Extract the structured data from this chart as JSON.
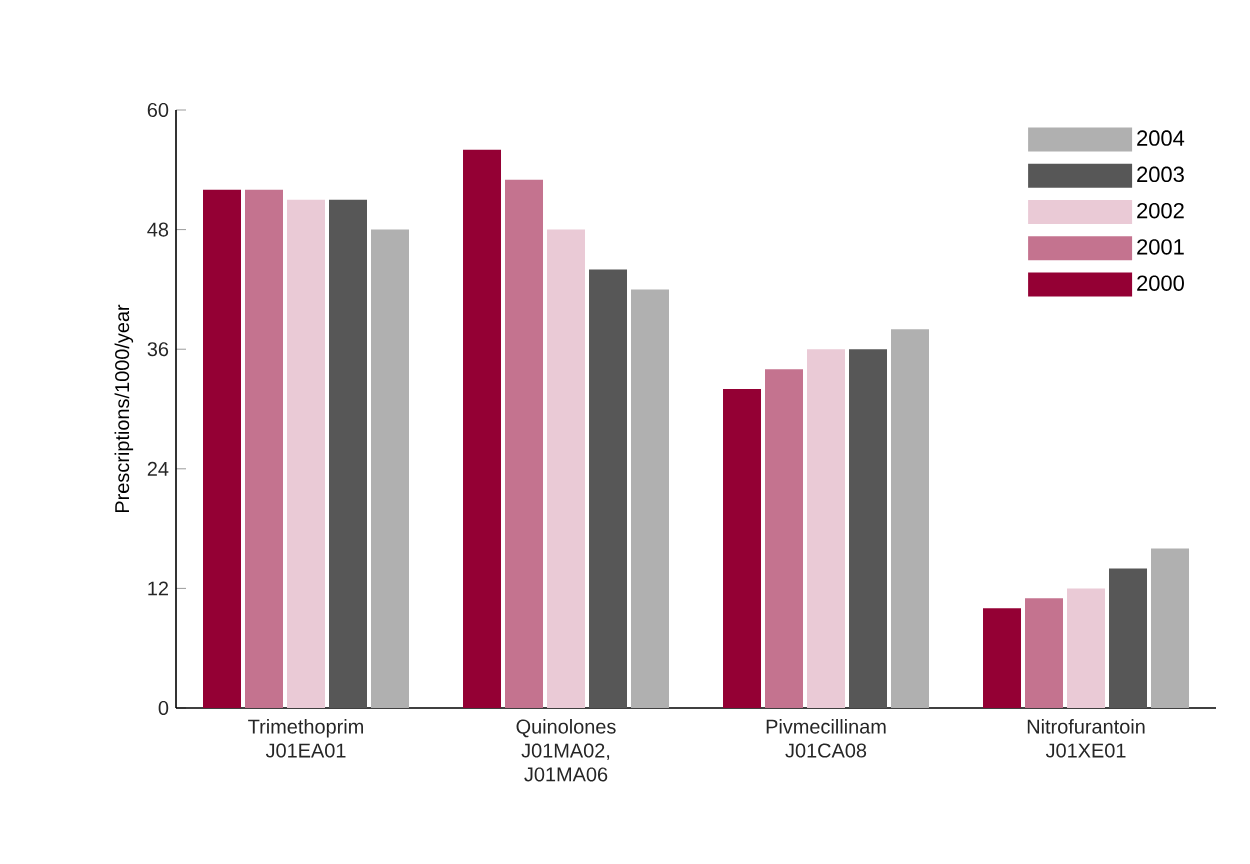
{
  "chart_data": {
    "type": "bar",
    "ylabel": "Prescriptions/1000/year",
    "categories": [
      "Trimethoprim J01EA01",
      "Quinolones J01MA02, J01MA06",
      "Pivmecillinam J01CA08",
      "Nitrofurantoin J01XE01"
    ],
    "series": [
      {
        "name": "2000",
        "color": "#940034",
        "values": [
          52,
          56,
          32,
          10
        ]
      },
      {
        "name": "2001",
        "color": "#c4738f",
        "values": [
          52,
          53,
          34,
          11
        ]
      },
      {
        "name": "2002",
        "color": "#eacad6",
        "values": [
          51,
          48,
          36,
          12
        ]
      },
      {
        "name": "2003",
        "color": "#575757",
        "values": [
          51,
          44,
          36,
          14
        ]
      },
      {
        "name": "2004",
        "color": "#b0b0b0",
        "values": [
          48,
          42,
          38,
          16
        ]
      }
    ],
    "ylim": [
      0,
      60
    ],
    "yticks": [
      0,
      12,
      24,
      36,
      48,
      60
    ],
    "grid": false,
    "legend": "top right"
  }
}
